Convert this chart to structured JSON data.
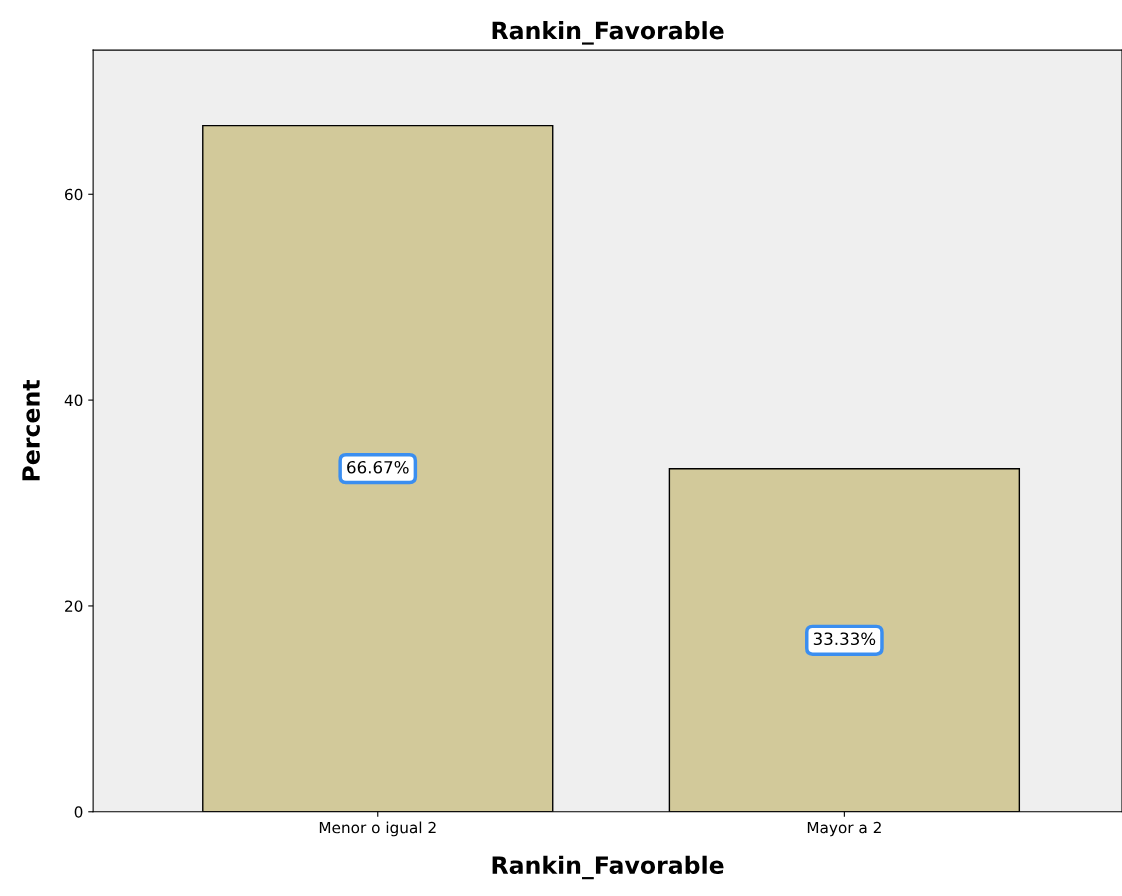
{
  "chart_data": {
    "type": "bar",
    "title": "Rankin_Favorable",
    "xlabel": "Rankin_Favorable",
    "ylabel": "Percent",
    "categories": [
      "Menor o igual 2",
      "Mayor a 2"
    ],
    "values": [
      66.67,
      33.33
    ],
    "value_labels": [
      "66.67%",
      "33.33%"
    ],
    "color": "#d2c99a",
    "ylim": [
      0,
      74
    ],
    "yticks": [
      0,
      20,
      40,
      60
    ],
    "grid": false,
    "legend": false
  }
}
